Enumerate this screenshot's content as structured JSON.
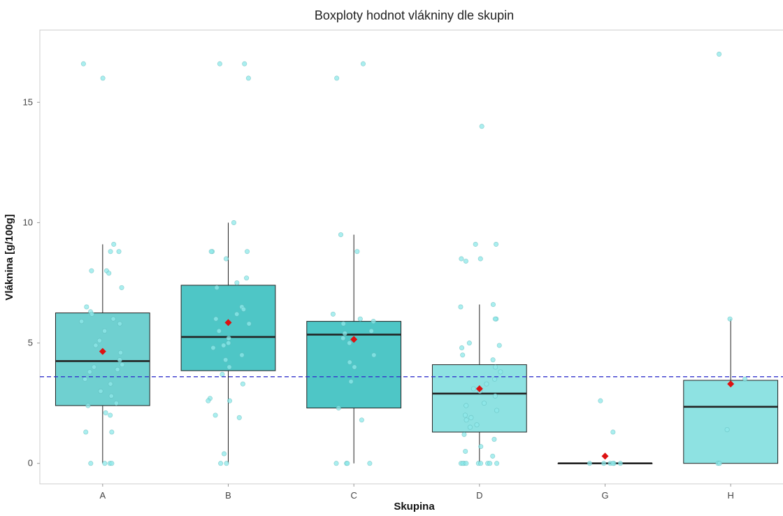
{
  "chart_data": {
    "type": "boxplot",
    "title": "Boxploty hodnot vlákniny dle skupin",
    "xlabel": "Skupina",
    "ylabel": "Vláknina [g/100g]",
    "ylim": [
      -0.85,
      18.0
    ],
    "yticks": [
      0,
      5,
      10,
      15
    ],
    "reference_line": {
      "y": 3.6,
      "style": "dashed",
      "color": "#3333cc"
    },
    "grid": false,
    "colors": {
      "box_dark": "#4ec6c6",
      "box_mid": "#6fd0d0",
      "box_light": "#8ee2e2",
      "points": "#8ee8ea",
      "mean_marker": "#dd1111"
    },
    "categories": [
      "A",
      "B",
      "C",
      "D",
      "G",
      "H"
    ],
    "boxes": [
      {
        "group": "A",
        "q1": 2.4,
        "median": 4.25,
        "q3": 6.25,
        "whisker_low": 0,
        "whisker_high": 9.1,
        "mean": 4.65,
        "fill": "#6fd0d0",
        "points": [
          16.6,
          16.0,
          9.1,
          8.8,
          8.8,
          8.0,
          8.0,
          7.9,
          7.3,
          6.5,
          6.3,
          6.2,
          6.0,
          5.9,
          5.8,
          5.5,
          5.1,
          4.9,
          4.6,
          4.3,
          4.1,
          4.0,
          3.9,
          3.8,
          3.5,
          3.3,
          3.0,
          2.8,
          2.5,
          2.4,
          2.1,
          2.0,
          1.3,
          1.3,
          0,
          0,
          0,
          0
        ]
      },
      {
        "group": "B",
        "q1": 3.85,
        "median": 5.25,
        "q3": 7.4,
        "whisker_low": 0,
        "whisker_high": 10.0,
        "mean": 5.85,
        "fill": "#4ec6c6",
        "points": [
          16.6,
          16.6,
          16.0,
          10.0,
          8.8,
          8.8,
          8.8,
          8.5,
          7.7,
          7.5,
          7.3,
          6.5,
          6.4,
          6.2,
          6.0,
          5.8,
          5.5,
          5.2,
          5.0,
          4.9,
          4.8,
          4.5,
          4.3,
          4.0,
          3.7,
          3.3,
          2.7,
          2.6,
          2.6,
          2.0,
          1.9,
          0.4,
          0,
          0
        ]
      },
      {
        "group": "C",
        "q1": 2.3,
        "median": 5.35,
        "q3": 5.9,
        "whisker_low": 0,
        "whisker_high": 9.5,
        "mean": 5.15,
        "fill": "#4ec6c6",
        "points": [
          16.6,
          16.0,
          9.5,
          8.8,
          6.2,
          6.0,
          5.9,
          5.8,
          5.5,
          5.4,
          5.2,
          5.0,
          4.5,
          4.2,
          4.0,
          3.4,
          2.3,
          1.8,
          0,
          0,
          0,
          0
        ]
      },
      {
        "group": "D",
        "q1": 1.3,
        "median": 2.9,
        "q3": 4.1,
        "whisker_low": 0,
        "whisker_high": 6.6,
        "mean": 3.1,
        "fill": "#8ee2e2",
        "points": [
          14.0,
          9.1,
          9.1,
          8.5,
          8.5,
          8.4,
          6.6,
          6.5,
          6.0,
          6.0,
          5.0,
          4.9,
          4.8,
          4.5,
          4.3,
          4.0,
          3.8,
          3.5,
          3.3,
          3.1,
          3.0,
          2.8,
          2.5,
          2.4,
          2.2,
          2.0,
          1.9,
          1.8,
          1.6,
          1.5,
          1.2,
          1.0,
          0.7,
          0.5,
          0.3,
          0,
          0,
          0,
          0,
          0,
          0,
          0,
          0,
          0
        ]
      },
      {
        "group": "G",
        "q1": 0,
        "median": 0,
        "q3": 0,
        "whisker_low": 0,
        "whisker_high": 0,
        "mean": 0.3,
        "fill": "#8ee2e2",
        "points": [
          2.6,
          1.3,
          0,
          0,
          0,
          0,
          0,
          0
        ]
      },
      {
        "group": "H",
        "q1": 0,
        "median": 2.35,
        "q3": 3.45,
        "whisker_low": 0,
        "whisker_high": 6.0,
        "mean": 3.3,
        "fill": "#8ee2e2",
        "points": [
          17.0,
          6.0,
          3.5,
          1.4,
          0,
          0
        ]
      }
    ]
  }
}
